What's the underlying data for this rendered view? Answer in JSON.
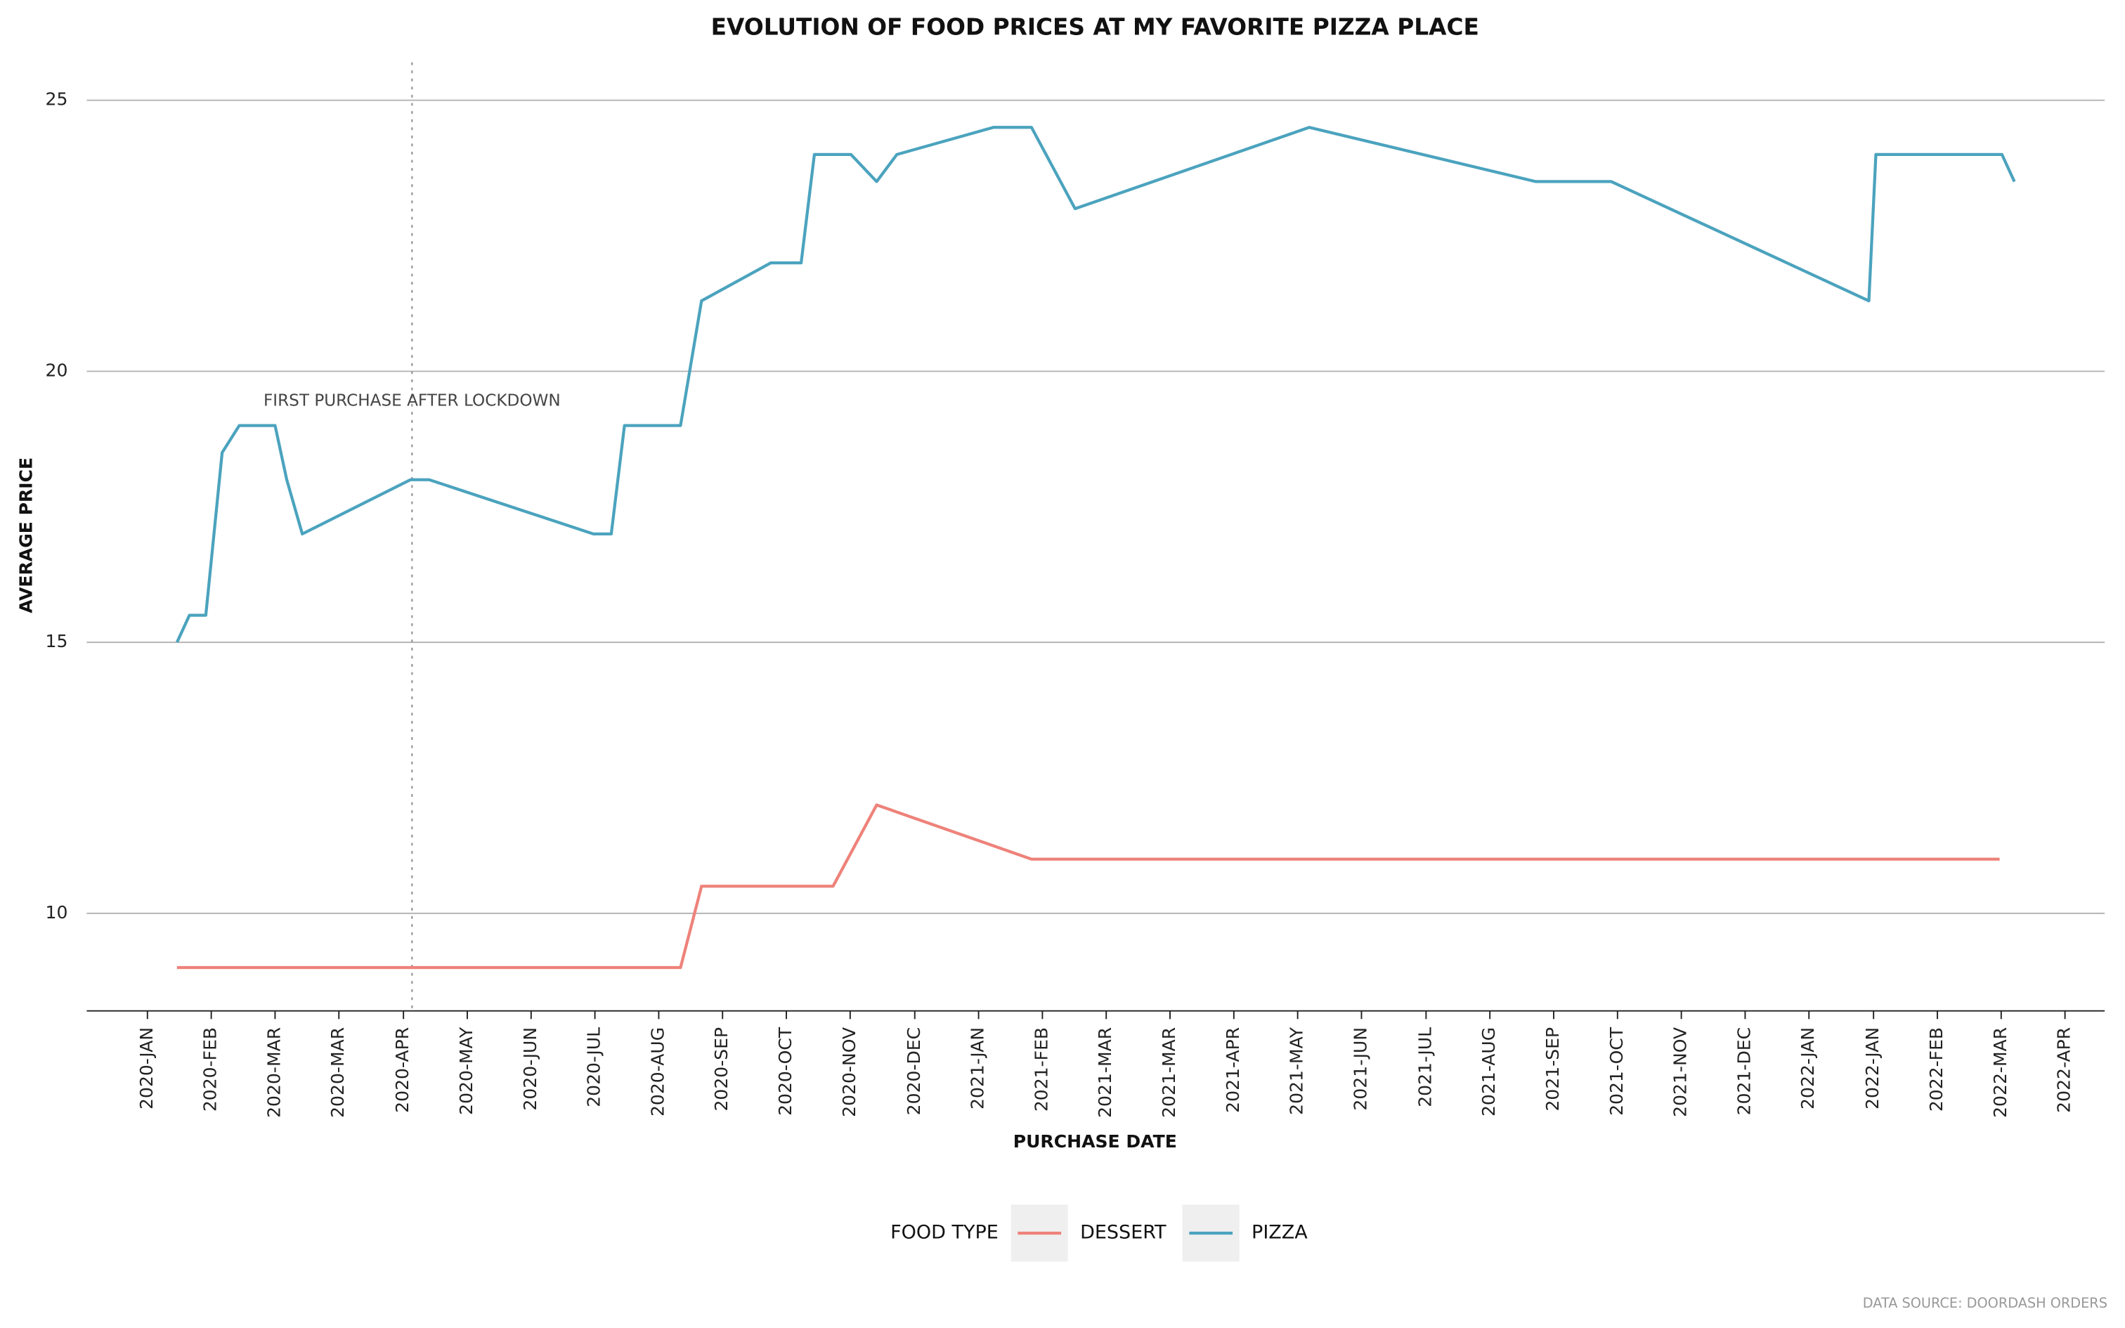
{
  "chart_data": {
    "type": "line",
    "title": "EVOLUTION OF FOOD PRICES AT MY FAVORITE PIZZA PLACE",
    "x_label": "PURCHASE DATE",
    "y_label": "AVERAGE PRICE",
    "legend_title": "FOOD TYPE",
    "legend_position": "bottom",
    "caption": "DATA SOURCE: DOORDASH ORDERS",
    "annotation": {
      "text": "FIRST PURCHASE AFTER LOCKDOWN",
      "x": 2020.34
    },
    "grid": true,
    "xlim": [
      2019.922,
      2022.515
    ],
    "ylim": [
      8.2,
      25.7
    ],
    "yticks": [
      10,
      15,
      20,
      25
    ],
    "xticks": [
      {
        "value": 2020.0,
        "label": "2020-JAN"
      },
      {
        "value": 2020.082,
        "label": "2020-FEB"
      },
      {
        "value": 2020.164,
        "label": "2020-MAR"
      },
      {
        "value": 2020.246,
        "label": "2020-MAR"
      },
      {
        "value": 2020.329,
        "label": "2020-APR"
      },
      {
        "value": 2020.411,
        "label": "2020-MAY"
      },
      {
        "value": 2020.493,
        "label": "2020-JUN"
      },
      {
        "value": 2020.575,
        "label": "2020-JUL"
      },
      {
        "value": 2020.657,
        "label": "2020-AUG"
      },
      {
        "value": 2020.739,
        "label": "2020-SEP"
      },
      {
        "value": 2020.821,
        "label": "2020-OCT"
      },
      {
        "value": 2020.903,
        "label": "2020-NOV"
      },
      {
        "value": 2020.986,
        "label": "2020-DEC"
      },
      {
        "value": 2021.068,
        "label": "2021-JAN"
      },
      {
        "value": 2021.15,
        "label": "2021-FEB"
      },
      {
        "value": 2021.232,
        "label": "2021-MAR"
      },
      {
        "value": 2021.314,
        "label": "2021-MAR"
      },
      {
        "value": 2021.396,
        "label": "2021-APR"
      },
      {
        "value": 2021.478,
        "label": "2021-MAY"
      },
      {
        "value": 2021.56,
        "label": "2021-JUN"
      },
      {
        "value": 2021.643,
        "label": "2021-JUL"
      },
      {
        "value": 2021.725,
        "label": "2021-AUG"
      },
      {
        "value": 2021.807,
        "label": "2021-SEP"
      },
      {
        "value": 2021.889,
        "label": "2021-OCT"
      },
      {
        "value": 2021.971,
        "label": "2021-NOV"
      },
      {
        "value": 2022.053,
        "label": "2021-DEC"
      },
      {
        "value": 2022.135,
        "label": "2022-JAN"
      },
      {
        "value": 2022.218,
        "label": "2022-JAN"
      },
      {
        "value": 2022.3,
        "label": "2022-FEB"
      },
      {
        "value": 2022.382,
        "label": "2022-MAR"
      },
      {
        "value": 2022.464,
        "label": "2022-APR"
      }
    ],
    "series": [
      {
        "name": "DESSERT",
        "color": "#ee827a",
        "x": [
          2020.038,
          2020.685,
          2020.712,
          2020.881,
          2020.937,
          2021.136,
          2022.38
        ],
        "values": [
          9,
          9,
          10.5,
          10.5,
          12,
          11,
          11
        ]
      },
      {
        "name": "PIZZA",
        "color": "#4ba3be",
        "x": [
          2020.038,
          2020.054,
          2020.075,
          2020.096,
          2020.118,
          2020.164,
          2020.179,
          2020.199,
          2020.338,
          2020.362,
          2020.573,
          2020.596,
          2020.613,
          2020.685,
          2020.712,
          2020.801,
          2020.84,
          2020.857,
          2020.904,
          2020.937,
          2020.963,
          2021.087,
          2021.136,
          2021.192,
          2021.493,
          2021.784,
          2021.881,
          2022.212,
          2022.221,
          2022.383,
          2022.399
        ],
        "values": [
          15,
          15.5,
          15.5,
          18.5,
          19,
          19,
          18,
          17,
          18,
          18,
          17,
          17,
          19,
          19,
          21.3,
          22,
          22,
          24,
          24,
          23.5,
          24,
          24.5,
          24.5,
          23,
          24.5,
          23.5,
          23.5,
          21.3,
          24,
          24,
          23.5
        ]
      }
    ]
  }
}
